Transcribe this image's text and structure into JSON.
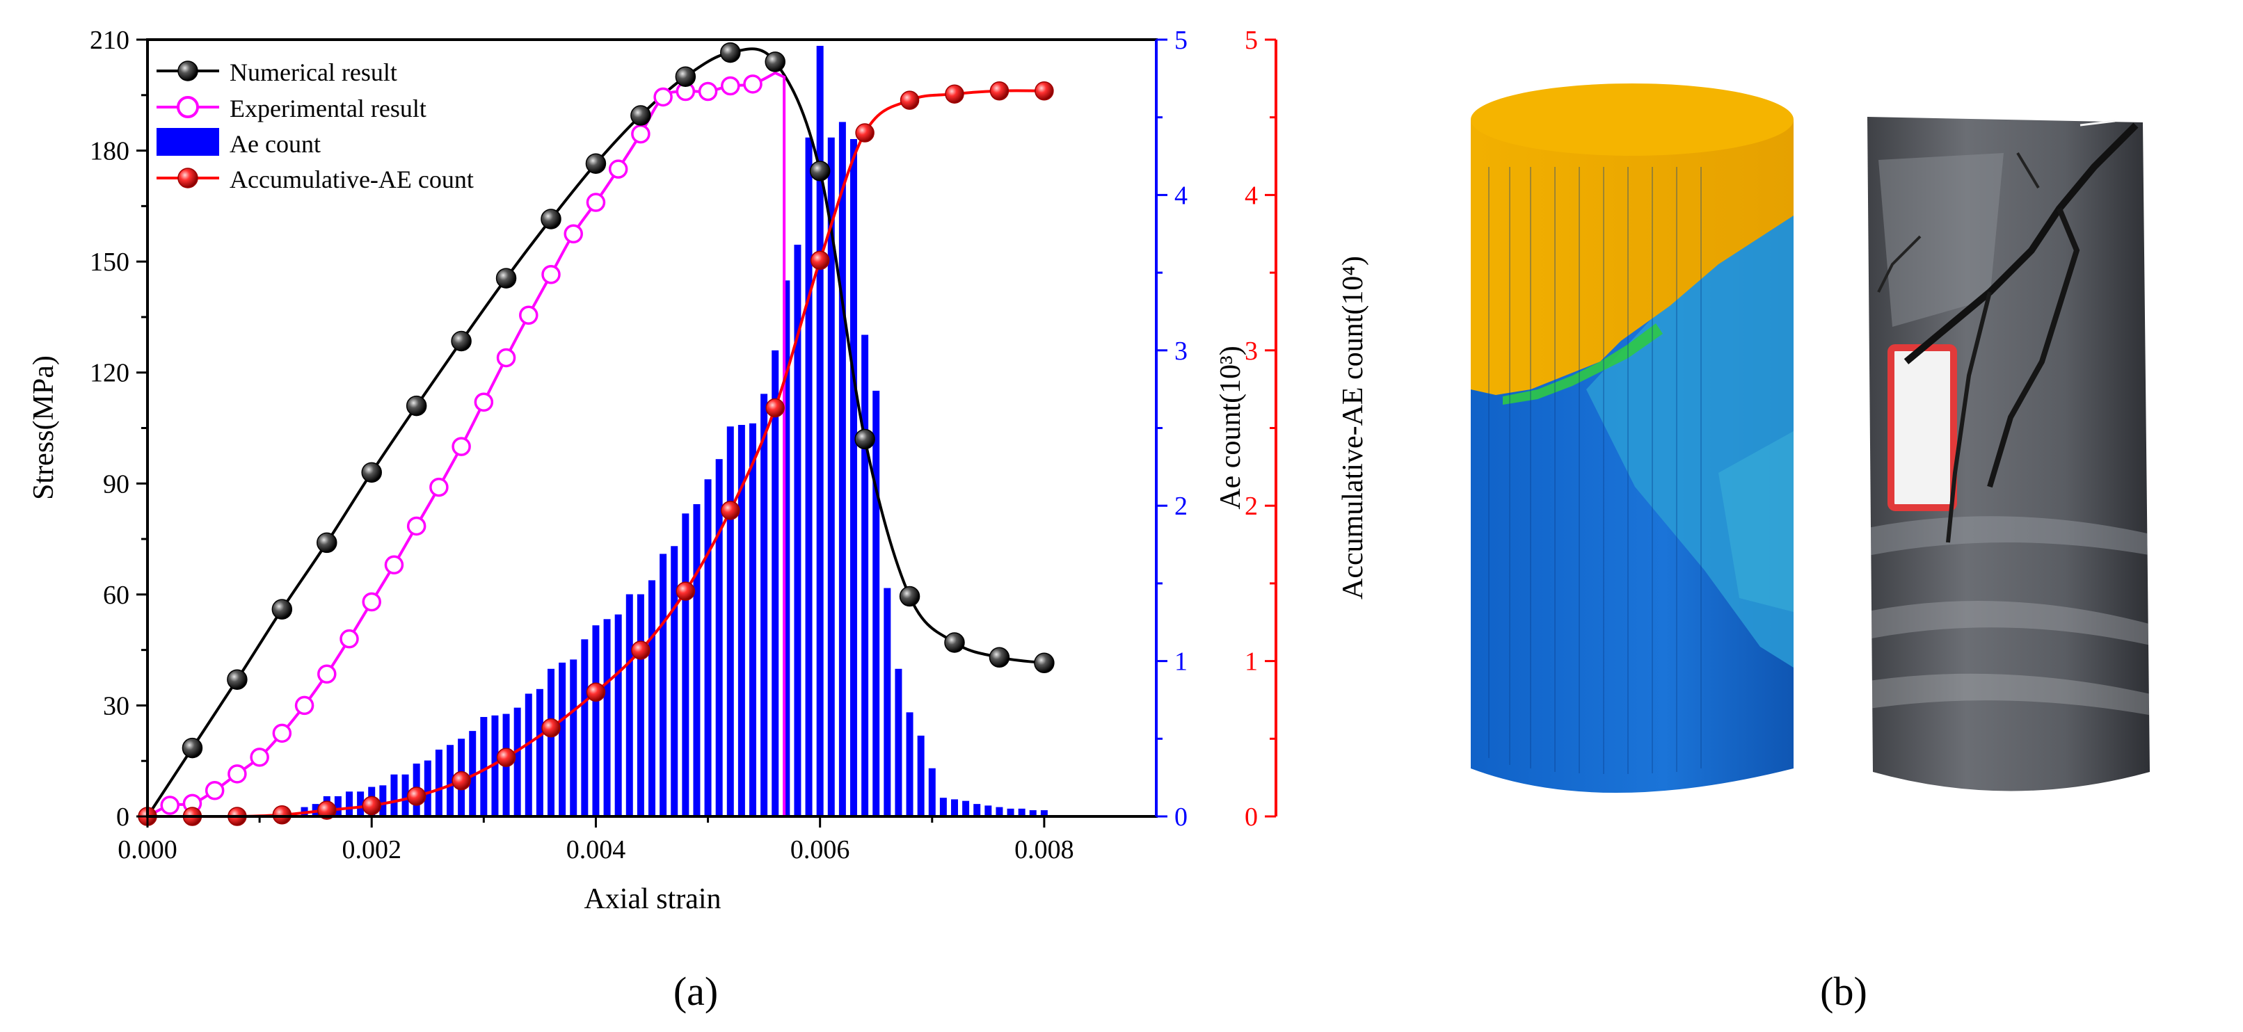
{
  "chart_data": {
    "type": "line+bar",
    "panel_label": "(a)",
    "xlabel": "Axial strain",
    "xlim": [
      0,
      0.009
    ],
    "xticks": [
      "0.000",
      "0.002",
      "0.004",
      "0.006",
      "0.008"
    ],
    "axes": {
      "stress": {
        "label": "Stress(MPa)",
        "ylim": [
          0,
          210
        ],
        "ticks": [
          "0",
          "30",
          "60",
          "90",
          "120",
          "150",
          "180",
          "210"
        ],
        "color": "#000000"
      },
      "ae": {
        "label": "Ae count(10³)",
        "ylim": [
          0,
          5
        ],
        "ticks": [
          "0",
          "1",
          "2",
          "3",
          "4",
          "5"
        ],
        "color": "#0000ff"
      },
      "cum": {
        "label": "Accumulative-AE count(10⁴)",
        "ylim": [
          0,
          5
        ],
        "ticks": [
          "0",
          "1",
          "2",
          "3",
          "4",
          "5"
        ],
        "color": "#ff0000"
      }
    },
    "legend": {
      "position": "top-left",
      "entries": [
        "Numerical result",
        "Experimental result",
        "Ae count",
        "Accumulative-AE count"
      ]
    },
    "series": [
      {
        "name": "Numerical result",
        "axis": "stress",
        "type": "line",
        "color": "#000000",
        "x": [
          0.0004,
          0.0008,
          0.0012,
          0.0016,
          0.002,
          0.0024,
          0.0028,
          0.0032,
          0.0036,
          0.004,
          0.0044,
          0.0048,
          0.0052,
          0.0056,
          0.006,
          0.0064,
          0.0068,
          0.0072,
          0.0076,
          0.008
        ],
        "y": [
          18.5,
          37,
          56,
          74,
          93,
          111,
          128.5,
          145.5,
          161.5,
          176.5,
          189.5,
          200,
          206.5,
          204,
          174.5,
          102,
          59.5,
          47,
          43,
          41.5
        ]
      },
      {
        "name": "Experimental result",
        "axis": "stress",
        "type": "line",
        "color": "#ff00ff",
        "x": [
          0.0002,
          0.0004,
          0.0006,
          0.0008,
          0.001,
          0.0012,
          0.0014,
          0.0016,
          0.0018,
          0.002,
          0.0022,
          0.0024,
          0.0026,
          0.0028,
          0.003,
          0.0032,
          0.0034,
          0.0036,
          0.0038,
          0.004,
          0.0042,
          0.0044,
          0.0046,
          0.0048,
          0.005,
          0.0052,
          0.0054
        ],
        "y": [
          3,
          3.5,
          7,
          11.5,
          16,
          22.5,
          30,
          38.5,
          48,
          58,
          68,
          78.5,
          89,
          100,
          112,
          124,
          135.5,
          146.5,
          157.5,
          166,
          175,
          184.5,
          194.5,
          196,
          196,
          197.5,
          198
        ],
        "drop_at": 0.00568
      },
      {
        "name": "Ae count",
        "axis": "ae",
        "type": "bar",
        "color": "#0000ff",
        "x": [
          0.0014,
          0.0015,
          0.0016,
          0.0017,
          0.0018,
          0.0019,
          0.002,
          0.0021,
          0.0022,
          0.0023,
          0.0024,
          0.0025,
          0.0026,
          0.0027,
          0.0028,
          0.0029,
          0.003,
          0.0031,
          0.0032,
          0.0033,
          0.0034,
          0.0035,
          0.0036,
          0.0037,
          0.0038,
          0.0039,
          0.004,
          0.0041,
          0.0042,
          0.0043,
          0.0044,
          0.0045,
          0.0046,
          0.0047,
          0.0048,
          0.0049,
          0.005,
          0.0051,
          0.0052,
          0.0053,
          0.0054,
          0.0055,
          0.0056,
          0.0057,
          0.0058,
          0.0059,
          0.006,
          0.0061,
          0.0062,
          0.0063,
          0.0064,
          0.0065,
          0.0066,
          0.0067,
          0.0068,
          0.0069,
          0.007,
          0.0071,
          0.0072,
          0.0073,
          0.0074,
          0.0075,
          0.0076,
          0.0077,
          0.0078,
          0.0079,
          0.008
        ],
        "y": [
          0.06,
          0.08,
          0.13,
          0.13,
          0.16,
          0.16,
          0.19,
          0.2,
          0.27,
          0.27,
          0.34,
          0.36,
          0.43,
          0.46,
          0.5,
          0.55,
          0.64,
          0.65,
          0.66,
          0.7,
          0.79,
          0.82,
          0.95,
          0.99,
          1.01,
          1.14,
          1.23,
          1.27,
          1.3,
          1.43,
          1.43,
          1.52,
          1.69,
          1.74,
          1.95,
          2.01,
          2.17,
          2.3,
          2.51,
          2.52,
          2.53,
          2.72,
          3.0,
          3.45,
          3.68,
          4.37,
          4.96,
          4.37,
          4.47,
          4.36,
          3.1,
          2.74,
          1.47,
          0.95,
          0.67,
          0.52,
          0.31,
          0.12,
          0.11,
          0.1,
          0.08,
          0.07,
          0.06,
          0.05,
          0.05,
          0.04,
          0.04
        ]
      },
      {
        "name": "Accumulative-AE count",
        "axis": "cum",
        "type": "line",
        "color": "#ff0000",
        "x": [
          0.0,
          0.0004,
          0.0008,
          0.0012,
          0.0016,
          0.002,
          0.0024,
          0.0028,
          0.0032,
          0.0036,
          0.004,
          0.0044,
          0.0048,
          0.0052,
          0.0056,
          0.006,
          0.0064,
          0.0068,
          0.0072,
          0.0076,
          0.008
        ],
        "y": [
          0.0,
          0.0,
          0.0,
          0.01,
          0.04,
          0.07,
          0.13,
          0.23,
          0.38,
          0.57,
          0.8,
          1.07,
          1.45,
          1.97,
          2.63,
          3.58,
          4.4,
          4.61,
          4.65,
          4.67,
          4.67
        ]
      }
    ]
  },
  "photo_panel": {
    "label": "(b)",
    "items": [
      "numerical-cylinder-model",
      "experimental-specimen-photo"
    ]
  }
}
